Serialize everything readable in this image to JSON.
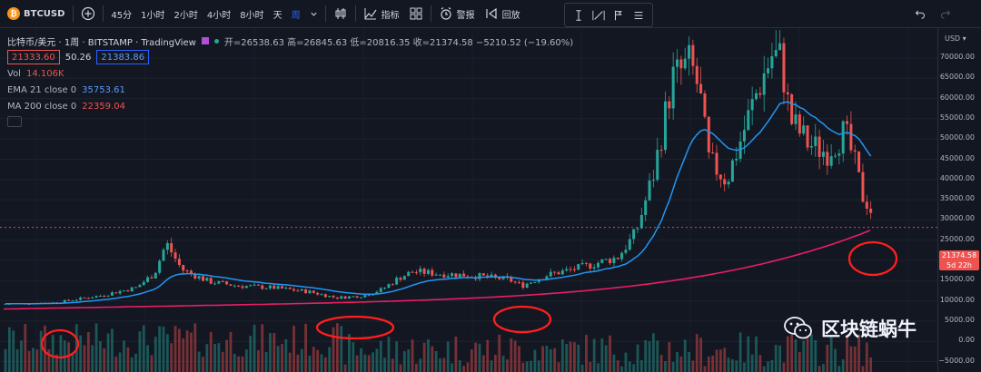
{
  "toolbar": {
    "symbol": "BTCUSD",
    "intervals": [
      "45分",
      "1小时",
      "2小时",
      "4小时",
      "8小时",
      "天",
      "周"
    ],
    "active_interval": "周",
    "indicators_label": "指标",
    "alert_label": "警报",
    "replay_label": "回放"
  },
  "legend": {
    "title": "比特币/美元 · 1周 · BITSTAMP · TradingView",
    "ohlc": "开=26538.63 高=26845.63 低=20816.35 收=21374.58 −5210.52 (−19.60%)",
    "bid": "21333.60",
    "spread": "50.26",
    "ask": "21383.86",
    "vol_label": "Vol",
    "vol_value": "14.106K",
    "ema_label": "EMA 21 close 0",
    "ema_value": "35753.61",
    "ma_label": "MA 200 close 0",
    "ma_value": "22359.04"
  },
  "price_axis": {
    "currency": "USD",
    "ticks": [
      "70000.00",
      "65000.00",
      "60000.00",
      "55000.00",
      "50000.00",
      "45000.00",
      "40000.00",
      "35000.00",
      "30000.00",
      "25000.00",
      "20000.00",
      "15000.00",
      "10000.00",
      "5000.00",
      "0.00",
      "−5000.00"
    ],
    "last_price": "21374.58",
    "countdown": "5d 22h"
  },
  "watermark": "区块链蜗牛",
  "colors": {
    "background": "#131722",
    "up": "#26a69a",
    "down": "#ef5350",
    "ema": "#2196f3",
    "ma": "#e91e63",
    "annotation": "#ff1f1f"
  }
}
